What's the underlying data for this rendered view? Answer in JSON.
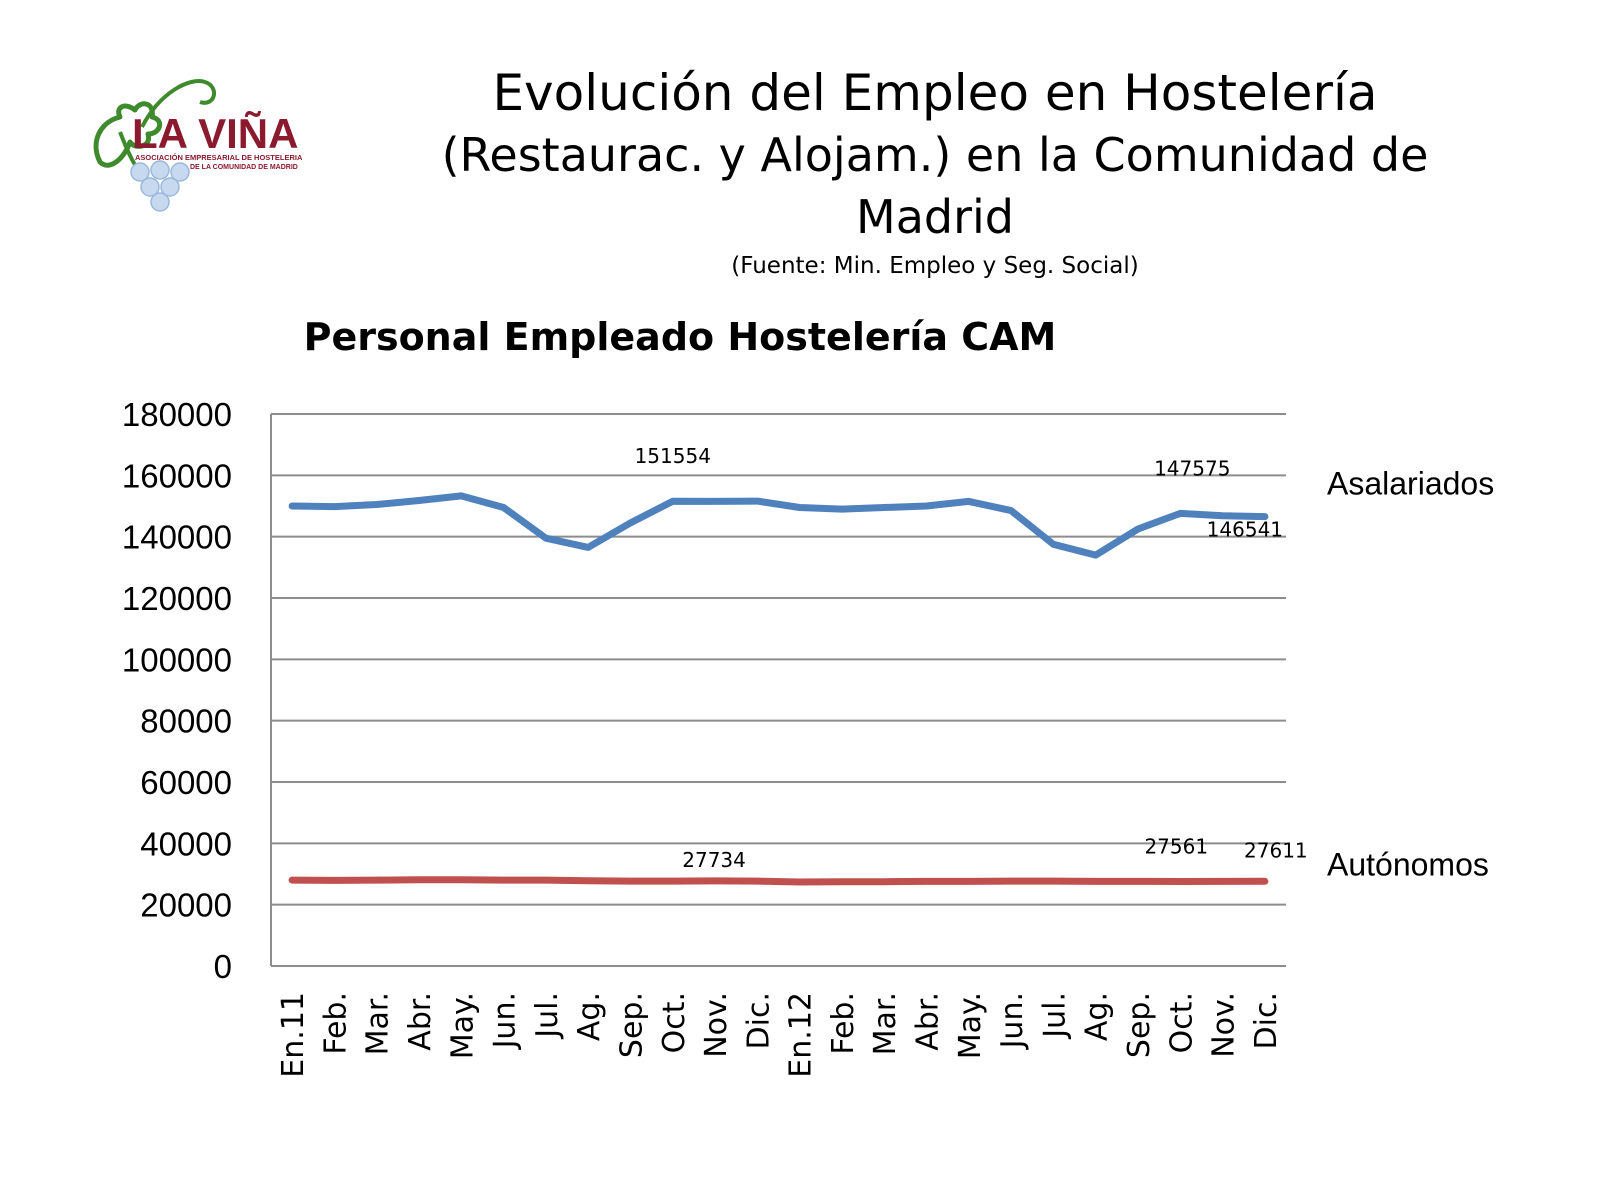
{
  "header": {
    "title": "Evolución del Empleo en Hostelería",
    "subtitle": "(Restaurac. y Alojam.) en la Comunidad de Madrid",
    "source": "(Fuente: Min. Empleo y Seg. Social)"
  },
  "logo": {
    "name": "LA VIÑA",
    "tagline_1": "ASOCIACIÓN EMPRESARIAL DE HOSTELERIA",
    "tagline_2": "DE LA COMUNIDAD DE MADRID",
    "brand_color": "#8b1a2e",
    "leaf_color": "#3e8a2c",
    "grape_color": "#c7d9ee"
  },
  "chart_data": {
    "type": "line",
    "title": "Personal Empleado Hostelería CAM",
    "categories": [
      "En.11",
      "Feb.",
      "Mar.",
      "Abr.",
      "May.",
      "Jun.",
      "Jul.",
      "Ag.",
      "Sep.",
      "Oct.",
      "Nov.",
      "Dic.",
      "En.12",
      "Feb.",
      "Mar.",
      "Abr.",
      "May.",
      "Jun.",
      "Jul.",
      "Ag.",
      "Sep.",
      "Oct.",
      "Nov.",
      "Dic."
    ],
    "ylim": [
      0,
      180000
    ],
    "yticks": [
      "0",
      "20000",
      "40000",
      "60000",
      "80000",
      "100000",
      "120000",
      "140000",
      "160000",
      "180000"
    ],
    "grid": true,
    "legend": "right, at series end",
    "series": [
      {
        "name": "Asalariados",
        "color": "#4f81bd",
        "values": [
          150000,
          149800,
          150500,
          151800,
          153300,
          149500,
          139500,
          136500,
          144500,
          151554,
          151500,
          151600,
          149500,
          149000,
          149500,
          150000,
          151500,
          148500,
          137500,
          134000,
          142500,
          147575,
          146800,
          146541
        ],
        "data_labels": [
          {
            "index": 9,
            "text": "151554"
          },
          {
            "index": 21,
            "text": "147575"
          },
          {
            "index": 23,
            "text": "146541"
          }
        ]
      },
      {
        "name": "Autónomos",
        "color": "#c0504d",
        "values": [
          28000,
          27900,
          28000,
          28100,
          28100,
          28000,
          28000,
          27800,
          27700,
          27700,
          27734,
          27700,
          27400,
          27500,
          27500,
          27600,
          27600,
          27700,
          27700,
          27600,
          27600,
          27561,
          27580,
          27611
        ],
        "data_labels": [
          {
            "index": 10,
            "text": "27734"
          },
          {
            "index": 21,
            "text": "27561"
          },
          {
            "index": 23,
            "text": "27611"
          }
        ]
      }
    ]
  }
}
